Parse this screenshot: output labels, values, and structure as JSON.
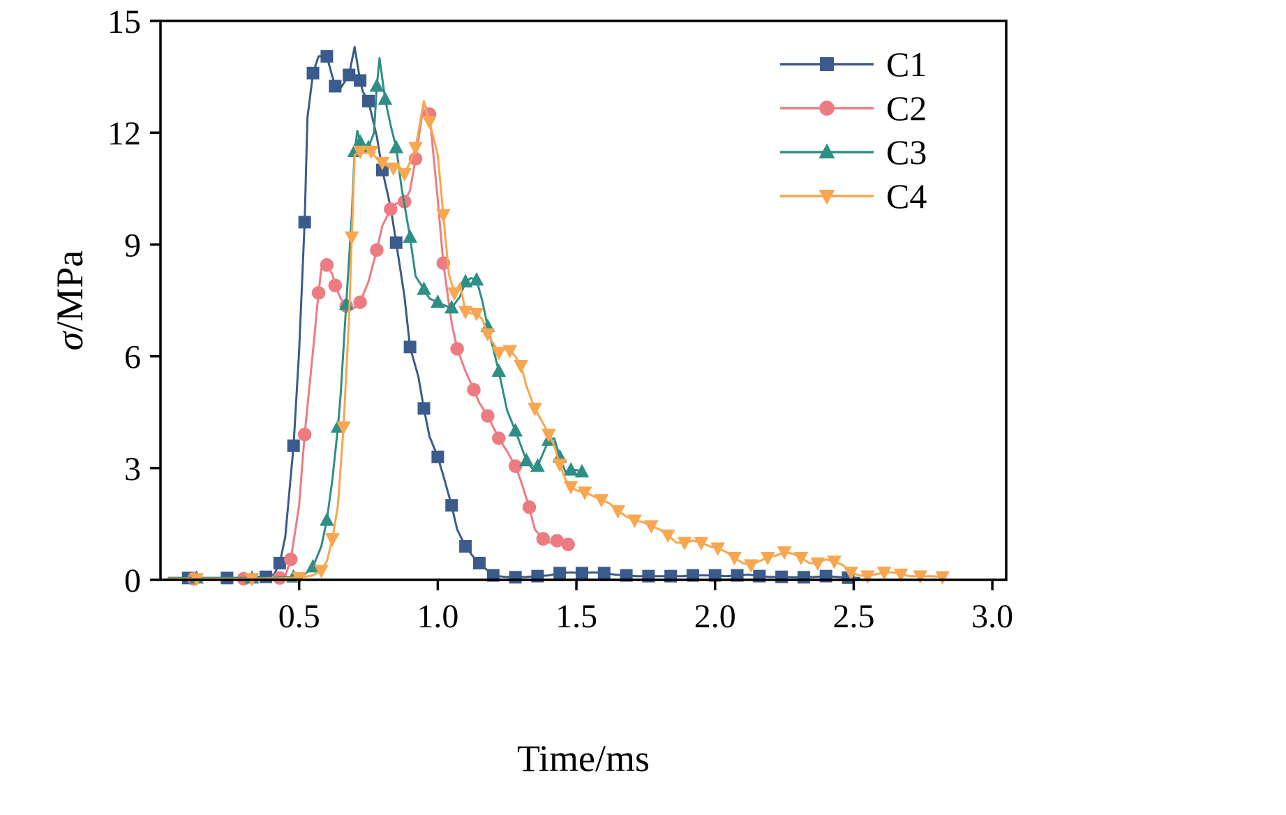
{
  "figure": {
    "background": "#ffffff",
    "axis_color": "#000000"
  },
  "chart_data": {
    "type": "line",
    "title": "",
    "xlabel": "Time/ms",
    "ylabel": "σ/MPa",
    "xlim": [
      0,
      3.05
    ],
    "ylim": [
      0,
      15
    ],
    "xticks": [
      0.5,
      1.0,
      1.5,
      2.0,
      2.5,
      3.0
    ],
    "xtick_labels": [
      "0.5",
      "1.0",
      "1.5",
      "2.0",
      "2.5",
      "3.0"
    ],
    "yticks": [
      0,
      3,
      6,
      9,
      12,
      15
    ],
    "ytick_labels": [
      "0",
      "3",
      "6",
      "9",
      "12",
      "15"
    ],
    "grid": false,
    "legend_position": "upper right",
    "series": [
      {
        "name": "C1",
        "color": "#3A5B8C",
        "marker": "square",
        "markevery": 2,
        "points": [
          [
            0.03,
            0.05
          ],
          [
            0.1,
            0.05
          ],
          [
            0.17,
            0.05
          ],
          [
            0.24,
            0.05
          ],
          [
            0.31,
            0.06
          ],
          [
            0.38,
            0.08
          ],
          [
            0.41,
            0.15
          ],
          [
            0.43,
            0.45
          ],
          [
            0.45,
            1.15
          ],
          [
            0.48,
            3.6
          ],
          [
            0.5,
            6.15
          ],
          [
            0.52,
            9.6
          ],
          [
            0.53,
            12.4
          ],
          [
            0.55,
            13.6
          ],
          [
            0.57,
            14.05
          ],
          [
            0.6,
            14.05
          ],
          [
            0.62,
            13.5
          ],
          [
            0.63,
            13.25
          ],
          [
            0.65,
            13.2
          ],
          [
            0.68,
            13.55
          ],
          [
            0.7,
            14.3
          ],
          [
            0.72,
            13.4
          ],
          [
            0.73,
            13.1
          ],
          [
            0.75,
            12.85
          ],
          [
            0.78,
            11.9
          ],
          [
            0.8,
            11.0
          ],
          [
            0.83,
            10.0
          ],
          [
            0.85,
            9.05
          ],
          [
            0.88,
            7.6
          ],
          [
            0.9,
            6.25
          ],
          [
            0.93,
            5.45
          ],
          [
            0.95,
            4.6
          ],
          [
            0.97,
            3.85
          ],
          [
            1.0,
            3.3
          ],
          [
            1.02,
            2.8
          ],
          [
            1.05,
            2.0
          ],
          [
            1.07,
            1.35
          ],
          [
            1.1,
            0.9
          ],
          [
            1.13,
            0.6
          ],
          [
            1.15,
            0.45
          ],
          [
            1.18,
            0.25
          ],
          [
            1.2,
            0.12
          ],
          [
            1.24,
            0.08
          ],
          [
            1.28,
            0.07
          ],
          [
            1.32,
            0.08
          ],
          [
            1.36,
            0.1
          ],
          [
            1.4,
            0.12
          ],
          [
            1.44,
            0.18
          ],
          [
            1.48,
            0.2
          ],
          [
            1.52,
            0.18
          ],
          [
            1.56,
            0.2
          ],
          [
            1.6,
            0.18
          ],
          [
            1.64,
            0.14
          ],
          [
            1.68,
            0.12
          ],
          [
            1.72,
            0.1
          ],
          [
            1.76,
            0.1
          ],
          [
            1.8,
            0.1
          ],
          [
            1.84,
            0.1
          ],
          [
            1.88,
            0.1
          ],
          [
            1.92,
            0.12
          ],
          [
            1.96,
            0.12
          ],
          [
            2.0,
            0.12
          ],
          [
            2.04,
            0.1
          ],
          [
            2.08,
            0.12
          ],
          [
            2.12,
            0.14
          ],
          [
            2.16,
            0.1
          ],
          [
            2.2,
            0.08
          ],
          [
            2.24,
            0.08
          ],
          [
            2.28,
            0.07
          ],
          [
            2.32,
            0.07
          ],
          [
            2.36,
            0.08
          ],
          [
            2.4,
            0.1
          ],
          [
            2.44,
            0.08
          ],
          [
            2.48,
            0.06
          ],
          [
            2.52,
            0.05
          ]
        ]
      },
      {
        "name": "C2",
        "color": "#EC7C82",
        "marker": "circle",
        "markevery": 2,
        "points": [
          [
            0.03,
            0.03
          ],
          [
            0.12,
            0.03
          ],
          [
            0.21,
            0.03
          ],
          [
            0.3,
            0.03
          ],
          [
            0.38,
            0.04
          ],
          [
            0.43,
            0.05
          ],
          [
            0.45,
            0.1
          ],
          [
            0.47,
            0.55
          ],
          [
            0.5,
            2.0
          ],
          [
            0.52,
            3.9
          ],
          [
            0.55,
            6.15
          ],
          [
            0.57,
            7.7
          ],
          [
            0.58,
            8.35
          ],
          [
            0.6,
            8.45
          ],
          [
            0.62,
            8.2
          ],
          [
            0.63,
            7.9
          ],
          [
            0.65,
            7.55
          ],
          [
            0.67,
            7.35
          ],
          [
            0.7,
            7.3
          ],
          [
            0.72,
            7.45
          ],
          [
            0.75,
            8.0
          ],
          [
            0.78,
            8.85
          ],
          [
            0.8,
            9.5
          ],
          [
            0.83,
            9.95
          ],
          [
            0.85,
            10.1
          ],
          [
            0.88,
            10.15
          ],
          [
            0.9,
            10.45
          ],
          [
            0.92,
            11.3
          ],
          [
            0.95,
            12.8
          ],
          [
            0.97,
            12.5
          ],
          [
            1.0,
            10.2
          ],
          [
            1.02,
            8.5
          ],
          [
            1.05,
            6.9
          ],
          [
            1.07,
            6.2
          ],
          [
            1.1,
            5.6
          ],
          [
            1.13,
            5.1
          ],
          [
            1.15,
            4.75
          ],
          [
            1.18,
            4.4
          ],
          [
            1.2,
            4.1
          ],
          [
            1.22,
            3.8
          ],
          [
            1.25,
            3.45
          ],
          [
            1.28,
            3.05
          ],
          [
            1.3,
            2.65
          ],
          [
            1.33,
            1.95
          ],
          [
            1.35,
            1.35
          ],
          [
            1.38,
            1.1
          ],
          [
            1.4,
            1.0
          ],
          [
            1.43,
            1.05
          ],
          [
            1.45,
            1.0
          ],
          [
            1.47,
            0.95
          ]
        ]
      },
      {
        "name": "C3",
        "color": "#2F8E85",
        "marker": "triangle-up",
        "markevery": 2,
        "points": [
          [
            0.03,
            0.05
          ],
          [
            0.13,
            0.05
          ],
          [
            0.23,
            0.05
          ],
          [
            0.33,
            0.05
          ],
          [
            0.43,
            0.06
          ],
          [
            0.48,
            0.08
          ],
          [
            0.52,
            0.15
          ],
          [
            0.55,
            0.35
          ],
          [
            0.58,
            0.9
          ],
          [
            0.6,
            1.6
          ],
          [
            0.62,
            2.7
          ],
          [
            0.64,
            4.1
          ],
          [
            0.65,
            5.0
          ],
          [
            0.67,
            7.4
          ],
          [
            0.69,
            9.8
          ],
          [
            0.7,
            11.5
          ],
          [
            0.71,
            12.05
          ],
          [
            0.72,
            11.75
          ],
          [
            0.74,
            11.6
          ],
          [
            0.75,
            11.6
          ],
          [
            0.77,
            12.0
          ],
          [
            0.78,
            13.25
          ],
          [
            0.79,
            14.0
          ],
          [
            0.81,
            12.9
          ],
          [
            0.83,
            12.2
          ],
          [
            0.85,
            11.6
          ],
          [
            0.87,
            10.5
          ],
          [
            0.9,
            9.2
          ],
          [
            0.92,
            8.15
          ],
          [
            0.95,
            7.8
          ],
          [
            0.97,
            7.55
          ],
          [
            1.0,
            7.45
          ],
          [
            1.03,
            7.35
          ],
          [
            1.05,
            7.3
          ],
          [
            1.08,
            7.6
          ],
          [
            1.1,
            8.0
          ],
          [
            1.12,
            8.1
          ],
          [
            1.14,
            8.05
          ],
          [
            1.16,
            7.5
          ],
          [
            1.18,
            6.8
          ],
          [
            1.2,
            6.2
          ],
          [
            1.22,
            5.6
          ],
          [
            1.25,
            4.55
          ],
          [
            1.28,
            4.0
          ],
          [
            1.3,
            3.6
          ],
          [
            1.32,
            3.2
          ],
          [
            1.34,
            3.0
          ],
          [
            1.36,
            3.05
          ],
          [
            1.38,
            3.4
          ],
          [
            1.4,
            3.75
          ],
          [
            1.42,
            3.8
          ],
          [
            1.44,
            3.3
          ],
          [
            1.46,
            2.9
          ],
          [
            1.48,
            2.95
          ],
          [
            1.5,
            2.95
          ],
          [
            1.52,
            2.9
          ]
        ]
      },
      {
        "name": "C4",
        "color": "#F8A64F",
        "marker": "triangle-down",
        "markevery": 2,
        "points": [
          [
            0.03,
            0.03
          ],
          [
            0.13,
            0.03
          ],
          [
            0.23,
            0.03
          ],
          [
            0.33,
            0.03
          ],
          [
            0.43,
            0.04
          ],
          [
            0.5,
            0.06
          ],
          [
            0.55,
            0.12
          ],
          [
            0.58,
            0.25
          ],
          [
            0.6,
            0.5
          ],
          [
            0.62,
            1.1
          ],
          [
            0.64,
            2.0
          ],
          [
            0.66,
            4.1
          ],
          [
            0.68,
            7.0
          ],
          [
            0.69,
            9.2
          ],
          [
            0.7,
            11.4
          ],
          [
            0.72,
            11.5
          ],
          [
            0.74,
            11.45
          ],
          [
            0.76,
            11.5
          ],
          [
            0.78,
            11.3
          ],
          [
            0.8,
            11.2
          ],
          [
            0.82,
            11.1
          ],
          [
            0.84,
            11.05
          ],
          [
            0.86,
            11.1
          ],
          [
            0.88,
            10.9
          ],
          [
            0.9,
            11.2
          ],
          [
            0.92,
            11.6
          ],
          [
            0.95,
            12.85
          ],
          [
            0.97,
            12.3
          ],
          [
            1.0,
            11.4
          ],
          [
            1.02,
            9.8
          ],
          [
            1.04,
            8.2
          ],
          [
            1.06,
            7.7
          ],
          [
            1.08,
            7.95
          ],
          [
            1.1,
            7.2
          ],
          [
            1.12,
            7.15
          ],
          [
            1.14,
            7.15
          ],
          [
            1.16,
            7.0
          ],
          [
            1.18,
            6.6
          ],
          [
            1.2,
            6.35
          ],
          [
            1.22,
            6.1
          ],
          [
            1.24,
            6.2
          ],
          [
            1.26,
            6.15
          ],
          [
            1.28,
            6.0
          ],
          [
            1.3,
            5.75
          ],
          [
            1.32,
            5.2
          ],
          [
            1.35,
            4.6
          ],
          [
            1.38,
            4.2
          ],
          [
            1.4,
            3.9
          ],
          [
            1.42,
            3.6
          ],
          [
            1.44,
            3.1
          ],
          [
            1.46,
            2.7
          ],
          [
            1.48,
            2.5
          ],
          [
            1.5,
            2.4
          ],
          [
            1.53,
            2.35
          ],
          [
            1.56,
            2.25
          ],
          [
            1.59,
            2.15
          ],
          [
            1.62,
            2.05
          ],
          [
            1.65,
            1.85
          ],
          [
            1.68,
            1.7
          ],
          [
            1.71,
            1.6
          ],
          [
            1.74,
            1.55
          ],
          [
            1.77,
            1.45
          ],
          [
            1.8,
            1.35
          ],
          [
            1.83,
            1.2
          ],
          [
            1.86,
            1.0
          ],
          [
            1.89,
            1.0
          ],
          [
            1.92,
            1.05
          ],
          [
            1.95,
            1.0
          ],
          [
            1.98,
            0.9
          ],
          [
            2.01,
            0.85
          ],
          [
            2.04,
            0.75
          ],
          [
            2.07,
            0.6
          ],
          [
            2.1,
            0.45
          ],
          [
            2.13,
            0.4
          ],
          [
            2.16,
            0.5
          ],
          [
            2.19,
            0.6
          ],
          [
            2.22,
            0.65
          ],
          [
            2.25,
            0.75
          ],
          [
            2.28,
            0.7
          ],
          [
            2.31,
            0.6
          ],
          [
            2.34,
            0.45
          ],
          [
            2.37,
            0.45
          ],
          [
            2.4,
            0.55
          ],
          [
            2.43,
            0.5
          ],
          [
            2.46,
            0.4
          ],
          [
            2.49,
            0.2
          ],
          [
            2.52,
            0.12
          ],
          [
            2.55,
            0.1
          ],
          [
            2.58,
            0.15
          ],
          [
            2.61,
            0.2
          ],
          [
            2.64,
            0.2
          ],
          [
            2.67,
            0.15
          ],
          [
            2.7,
            0.1
          ],
          [
            2.74,
            0.1
          ],
          [
            2.78,
            0.1
          ],
          [
            2.82,
            0.08
          ]
        ]
      }
    ]
  }
}
